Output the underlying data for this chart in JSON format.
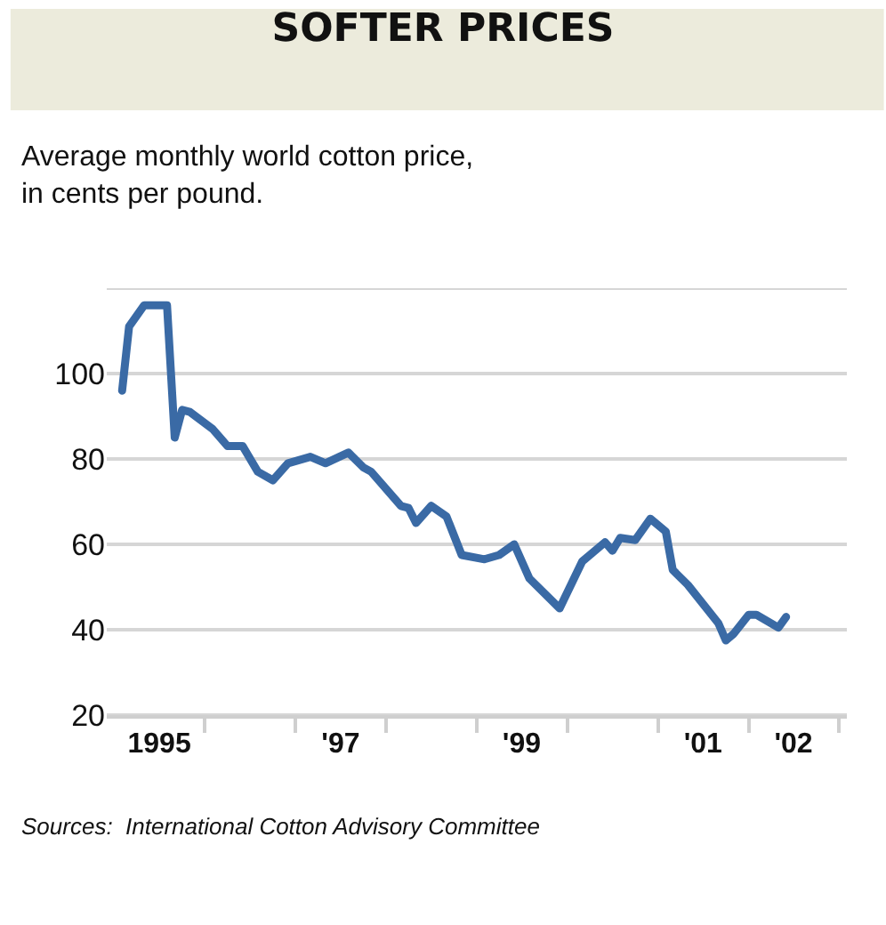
{
  "chart_data": {
    "type": "line",
    "title": "SOFTER PRICES",
    "subtitle": "Average monthly world cotton price,\nin cents per pound.",
    "annotations": [
      "Sources:  International Cotton Advisory Committee"
    ],
    "x": [
      "1995-02",
      "1995-03",
      "1995-05",
      "1995-08",
      "1995-09",
      "1995-10",
      "1995-11",
      "1996-02",
      "1996-04",
      "1996-06",
      "1996-08",
      "1996-10",
      "1996-12",
      "1997-03",
      "1997-05",
      "1997-08",
      "1997-10",
      "1997-11",
      "1998-03",
      "1998-04",
      "1998-05",
      "1998-07",
      "1998-09",
      "1998-11",
      "1999-02",
      "1999-04",
      "1999-06",
      "1999-08",
      "1999-12",
      "2000-03",
      "2000-06",
      "2000-07",
      "2000-08",
      "2000-10",
      "2000-12",
      "2001-02",
      "2001-03",
      "2001-05",
      "2001-09",
      "2001-10",
      "2001-11",
      "2002-01",
      "2002-02",
      "2002-05",
      "2002-06"
    ],
    "series": [
      {
        "color": "#3a6aa5",
        "values": [
          96,
          111,
          116,
          116,
          85,
          91.5,
          91,
          87,
          83,
          83,
          77,
          75,
          79,
          80.5,
          79,
          81.5,
          78,
          77,
          69,
          68.5,
          65,
          69,
          66.5,
          57.5,
          56.5,
          57.5,
          60,
          52,
          45,
          56,
          60.5,
          58.5,
          61.5,
          61,
          66,
          63,
          54,
          50.5,
          41.5,
          37.5,
          39,
          43.5,
          43.5,
          40.5,
          43
        ]
      }
    ],
    "xlim": [
      "1994-12-01",
      "2003-02-01"
    ],
    "xticks": [
      {
        "value": "1995-07-01",
        "label": "1995"
      },
      {
        "value": "1996-01-01",
        "label": null
      },
      {
        "value": "1997-01-01",
        "label": null
      },
      {
        "value": "1997-07-01",
        "label": "'97"
      },
      {
        "value": "1998-01-01",
        "label": null
      },
      {
        "value": "1999-01-01",
        "label": null
      },
      {
        "value": "1999-07-01",
        "label": "'99"
      },
      {
        "value": "2000-01-01",
        "label": null
      },
      {
        "value": "2001-01-01",
        "label": null
      },
      {
        "value": "2001-07-01",
        "label": "'01"
      },
      {
        "value": "2002-01-01",
        "label": null
      },
      {
        "value": "2002-07-01",
        "label": "'02"
      },
      {
        "value": "2003-01-01",
        "label": null
      }
    ],
    "ylim": [
      20,
      120
    ],
    "yticks": [
      20,
      40,
      60,
      80,
      100,
      {
        "value": 120,
        "label": null
      }
    ],
    "grid": "y",
    "marker": "none",
    "line_style": "solid"
  }
}
